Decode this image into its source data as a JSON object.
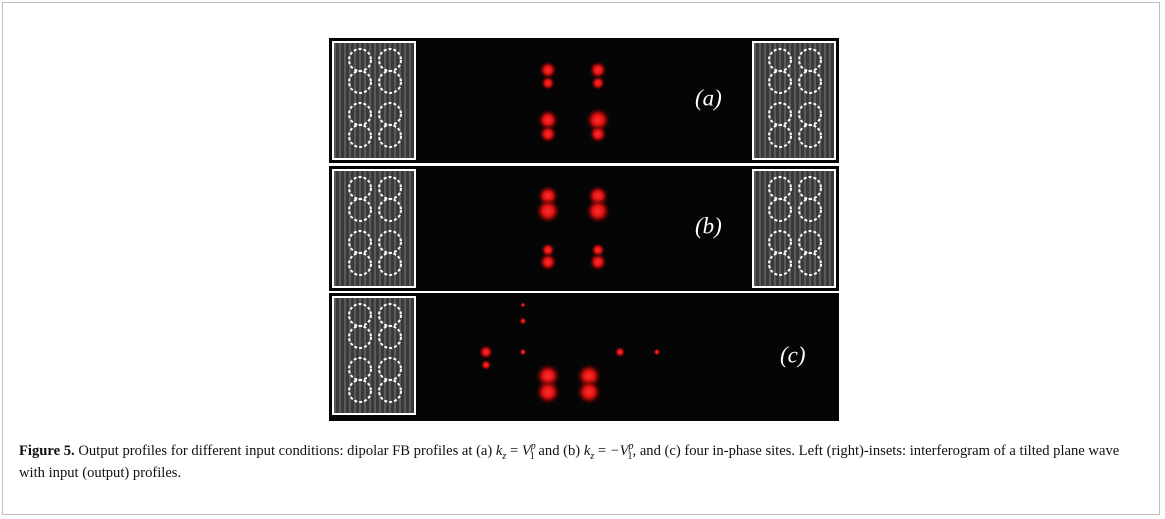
{
  "figure": {
    "panels": [
      {
        "label": "(a)"
      },
      {
        "label": "(b)"
      },
      {
        "label": "(c)"
      }
    ],
    "caption": {
      "label": "Figure 5.",
      "text_1": " Output profiles for different input conditions: dipolar FB profiles at (a) ",
      "math_a": {
        "lhs": "k",
        "lhs_sub": "z",
        "rel": "=",
        "rhs": "V",
        "rhs_sub": "1",
        "rhs_sup": "p"
      },
      "text_2": " and (b) ",
      "math_b": {
        "lhs": "k",
        "lhs_sub": "z",
        "rel": "=",
        "rhs": "−V",
        "rhs_sub": "1",
        "rhs_sup": "p"
      },
      "text_3": ", and (c) four in-phase sites. Left (right)-insets: interferogram of a tilted plane wave with input (output) profiles."
    }
  }
}
